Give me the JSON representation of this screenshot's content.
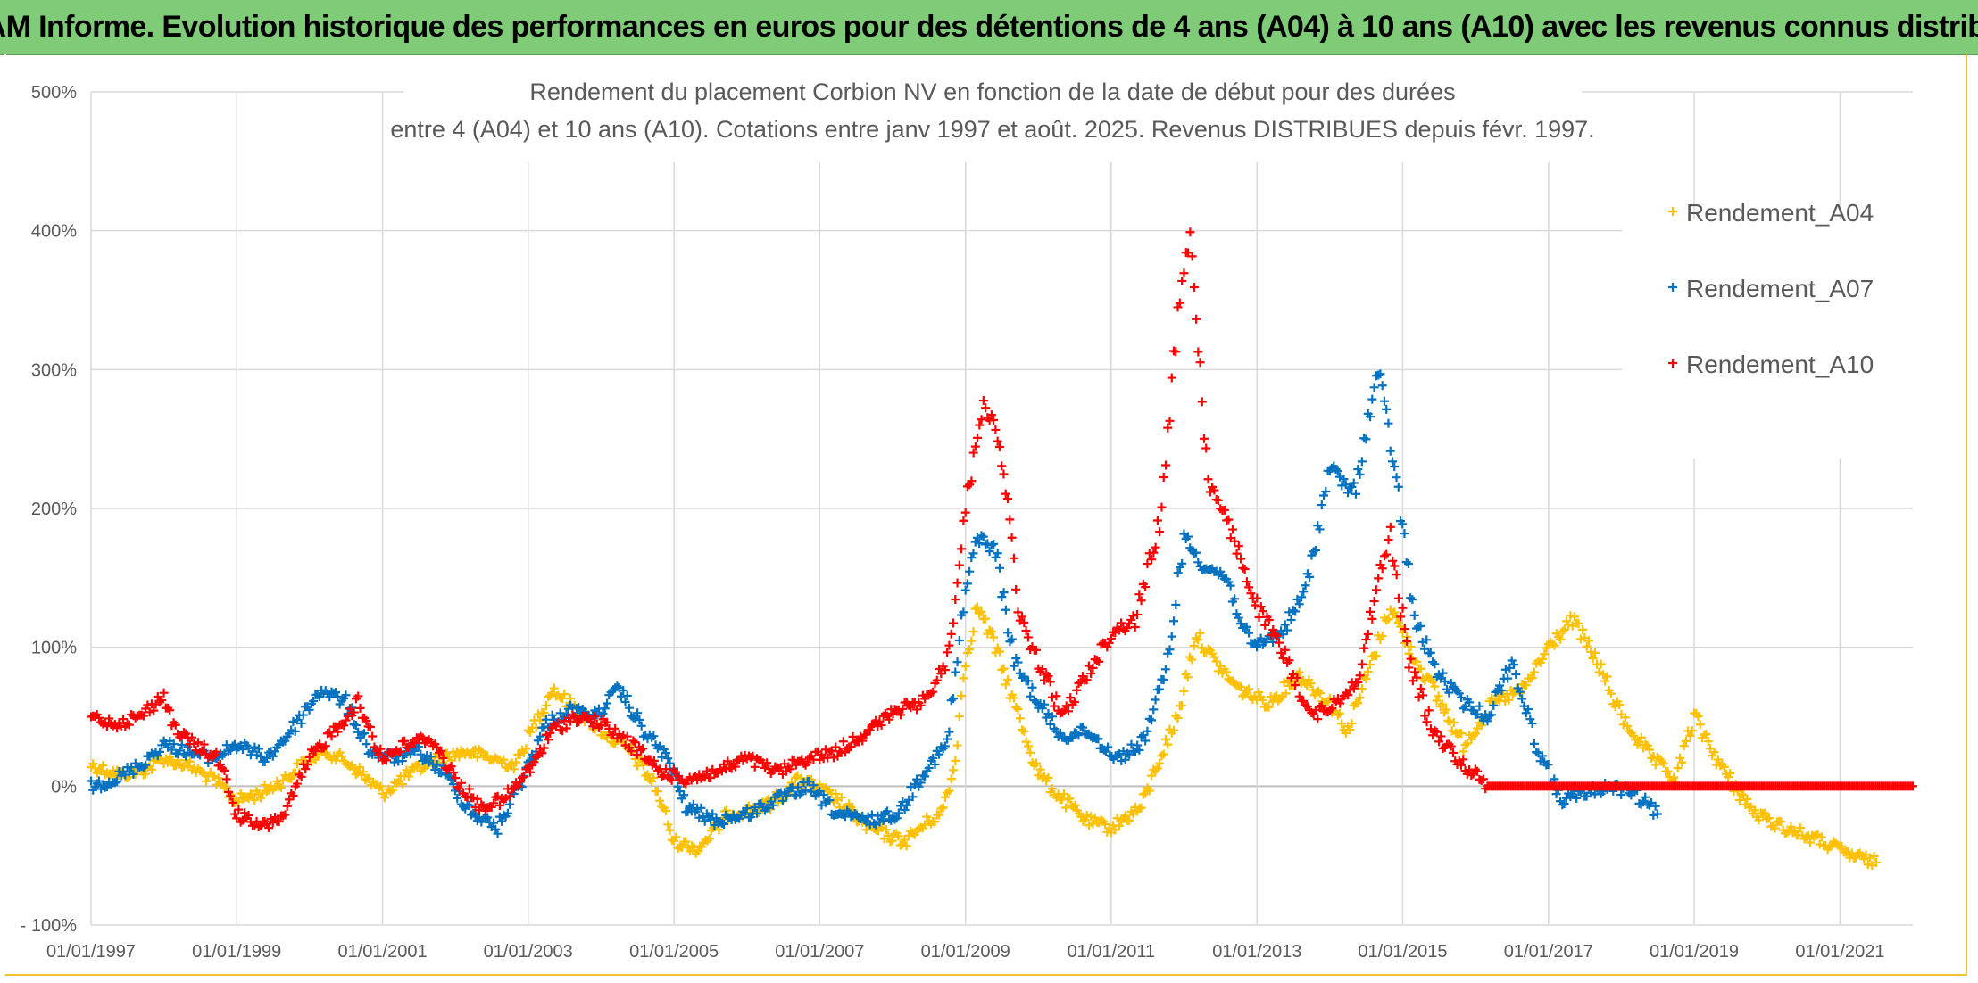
{
  "header": {
    "title": "ADAM Informe. Evolution historique des performances en euros pour des détentions de 4 ans (A04) à 10 ans (A10) avec les revenus connus distribués"
  },
  "chart_data": {
    "type": "scatter",
    "title_lines": [
      "Rendement du placement Corbion NV en fonction de la date de début pour des durées",
      "entre 4 (A04) et 10 ans (A10). Cotations entre janv 1997 et août. 2025. Revenus DISTRIBUES depuis févr. 1997."
    ],
    "xlabel": "",
    "ylabel": "",
    "x_range": [
      "1997-01-01",
      "2022-01-01"
    ],
    "ylim": [
      -100,
      500
    ],
    "y_ticks": [
      500,
      400,
      300,
      200,
      100,
      0,
      -100
    ],
    "y_tick_labels": [
      "500%",
      "400%",
      "300%",
      "200%",
      "100%",
      "0%",
      "- 100%"
    ],
    "x_tick_labels": [
      "01/01/1997",
      "01/01/1999",
      "01/01/2001",
      "01/01/2003",
      "01/01/2005",
      "01/01/2007",
      "01/01/2009",
      "01/01/2011",
      "01/01/2013",
      "01/01/2015",
      "01/01/2017",
      "01/01/2019",
      "01/01/2021"
    ],
    "grid": true,
    "legend_position": "top-right",
    "marker": "+",
    "series": [
      {
        "name": "Rendement_A04",
        "color": "#ffc000",
        "points": [
          [
            "1997-01-01",
            15
          ],
          [
            "1997-06-01",
            8
          ],
          [
            "1997-10-01",
            12
          ],
          [
            "1998-01-01",
            20
          ],
          [
            "1998-05-01",
            15
          ],
          [
            "1998-09-01",
            5
          ],
          [
            "1999-01-01",
            -10
          ],
          [
            "1999-05-01",
            -5
          ],
          [
            "1999-09-01",
            5
          ],
          [
            "2000-01-01",
            20
          ],
          [
            "2000-04-01",
            25
          ],
          [
            "2000-08-01",
            15
          ],
          [
            "2001-01-01",
            -5
          ],
          [
            "2001-06-01",
            10
          ],
          [
            "2001-10-01",
            20
          ],
          [
            "2002-03-01",
            25
          ],
          [
            "2002-07-01",
            20
          ],
          [
            "2002-11-01",
            15
          ],
          [
            "2003-01-01",
            35
          ],
          [
            "2003-05-01",
            70
          ],
          [
            "2003-09-01",
            55
          ],
          [
            "2004-01-01",
            40
          ],
          [
            "2004-06-01",
            25
          ],
          [
            "2004-10-01",
            0
          ],
          [
            "2005-01-01",
            -40
          ],
          [
            "2005-05-01",
            -45
          ],
          [
            "2005-10-01",
            -20
          ],
          [
            "2006-04-01",
            -15
          ],
          [
            "2006-10-01",
            5
          ],
          [
            "2007-04-01",
            -10
          ],
          [
            "2007-09-01",
            -30
          ],
          [
            "2008-03-01",
            -40
          ],
          [
            "2008-07-01",
            -25
          ],
          [
            "2008-09-01",
            -20
          ],
          [
            "2008-11-01",
            10
          ],
          [
            "2009-01-01",
            90
          ],
          [
            "2009-03-01",
            130
          ],
          [
            "2009-06-01",
            100
          ],
          [
            "2009-09-01",
            60
          ],
          [
            "2010-01-01",
            10
          ],
          [
            "2010-04-01",
            -5
          ],
          [
            "2010-09-01",
            -25
          ],
          [
            "2011-01-01",
            -30
          ],
          [
            "2011-06-01",
            -15
          ],
          [
            "2011-09-01",
            20
          ],
          [
            "2011-12-01",
            50
          ],
          [
            "2012-03-01",
            110
          ],
          [
            "2012-06-01",
            90
          ],
          [
            "2012-10-01",
            70
          ],
          [
            "2013-03-01",
            60
          ],
          [
            "2013-08-01",
            80
          ],
          [
            "2014-01-01",
            60
          ],
          [
            "2014-04-01",
            40
          ],
          [
            "2014-08-01",
            90
          ],
          [
            "2014-11-01",
            130
          ],
          [
            "2015-02-01",
            100
          ],
          [
            "2015-06-01",
            70
          ],
          [
            "2015-11-01",
            30
          ],
          [
            "2016-04-01",
            60
          ],
          [
            "2016-09-01",
            70
          ],
          [
            "2017-01-01",
            100
          ],
          [
            "2017-05-01",
            120
          ],
          [
            "2017-09-01",
            90
          ],
          [
            "2018-01-01",
            50
          ],
          [
            "2018-06-01",
            20
          ],
          [
            "2018-10-01",
            5
          ],
          [
            "2019-01-01",
            50
          ],
          [
            "2019-06-01",
            10
          ],
          [
            "2019-11-01",
            -20
          ],
          [
            "2020-04-01",
            -30
          ],
          [
            "2020-10-01",
            -40
          ],
          [
            "2021-03-01",
            -50
          ],
          [
            "2021-07-01",
            -55
          ]
        ]
      },
      {
        "name": "Rendement_A07",
        "color": "#0070c0",
        "points": [
          [
            "1997-01-01",
            0
          ],
          [
            "1997-05-01",
            5
          ],
          [
            "1997-09-01",
            15
          ],
          [
            "1998-01-01",
            30
          ],
          [
            "1998-05-01",
            25
          ],
          [
            "1998-09-01",
            20
          ],
          [
            "1999-01-01",
            30
          ],
          [
            "1999-06-01",
            20
          ],
          [
            "1999-10-01",
            40
          ],
          [
            "2000-03-01",
            70
          ],
          [
            "2000-07-01",
            60
          ],
          [
            "2000-11-01",
            25
          ],
          [
            "2001-03-01",
            20
          ],
          [
            "2001-07-01",
            25
          ],
          [
            "2001-11-01",
            10
          ],
          [
            "2002-04-01",
            -20
          ],
          [
            "2002-08-01",
            -30
          ],
          [
            "2002-12-01",
            5
          ],
          [
            "2003-04-01",
            45
          ],
          [
            "2003-08-01",
            55
          ],
          [
            "2003-12-01",
            50
          ],
          [
            "2004-04-01",
            70
          ],
          [
            "2004-08-01",
            40
          ],
          [
            "2004-12-01",
            20
          ],
          [
            "2005-03-01",
            -15
          ],
          [
            "2005-08-01",
            -25
          ],
          [
            "2006-01-01",
            -20
          ],
          [
            "2006-06-01",
            -10
          ],
          [
            "2006-11-01",
            0
          ],
          [
            "2007-04-01",
            -20
          ],
          [
            "2007-09-01",
            -25
          ],
          [
            "2008-02-01",
            -20
          ],
          [
            "2008-06-01",
            10
          ],
          [
            "2008-10-01",
            30
          ],
          [
            "2009-01-01",
            140
          ],
          [
            "2009-03-01",
            180
          ],
          [
            "2009-06-01",
            170
          ],
          [
            "2009-09-01",
            90
          ],
          [
            "2010-01-01",
            60
          ],
          [
            "2010-05-01",
            35
          ],
          [
            "2010-09-01",
            40
          ],
          [
            "2011-02-01",
            20
          ],
          [
            "2011-06-01",
            30
          ],
          [
            "2011-10-01",
            80
          ],
          [
            "2012-01-01",
            180
          ],
          [
            "2012-04-01",
            160
          ],
          [
            "2012-08-01",
            150
          ],
          [
            "2012-12-01",
            100
          ],
          [
            "2013-05-01",
            110
          ],
          [
            "2013-09-01",
            140
          ],
          [
            "2014-01-01",
            230
          ],
          [
            "2014-05-01",
            210
          ],
          [
            "2014-09-01",
            300
          ],
          [
            "2014-12-01",
            220
          ],
          [
            "2015-03-01",
            120
          ],
          [
            "2015-07-01",
            80
          ],
          [
            "2015-11-01",
            60
          ],
          [
            "2016-03-01",
            50
          ],
          [
            "2016-07-01",
            90
          ],
          [
            "2016-11-01",
            30
          ],
          [
            "2017-03-01",
            -10
          ],
          [
            "2017-07-01",
            -5
          ],
          [
            "2017-11-01",
            0
          ],
          [
            "2018-03-01",
            -5
          ],
          [
            "2018-07-01",
            -20
          ]
        ]
      },
      {
        "name": "Rendement_A10",
        "color": "#ff0000",
        "points": [
          [
            "1997-01-01",
            50
          ],
          [
            "1997-05-01",
            45
          ],
          [
            "1997-09-01",
            50
          ],
          [
            "1998-01-01",
            65
          ],
          [
            "1998-03-01",
            40
          ],
          [
            "1998-06-01",
            30
          ],
          [
            "1998-10-01",
            20
          ],
          [
            "1999-01-01",
            -20
          ],
          [
            "1999-05-01",
            -30
          ],
          [
            "1999-09-01",
            -20
          ],
          [
            "2000-01-01",
            20
          ],
          [
            "2000-05-01",
            40
          ],
          [
            "2000-09-01",
            60
          ],
          [
            "2001-01-01",
            20
          ],
          [
            "2001-05-01",
            30
          ],
          [
            "2001-09-01",
            35
          ],
          [
            "2002-01-01",
            5
          ],
          [
            "2002-05-01",
            -15
          ],
          [
            "2002-09-01",
            -10
          ],
          [
            "2003-01-01",
            10
          ],
          [
            "2003-05-01",
            40
          ],
          [
            "2003-09-01",
            50
          ],
          [
            "2004-01-01",
            45
          ],
          [
            "2004-06-01",
            30
          ],
          [
            "2004-11-01",
            10
          ],
          [
            "2005-03-01",
            5
          ],
          [
            "2005-08-01",
            10
          ],
          [
            "2006-01-01",
            20
          ],
          [
            "2006-06-01",
            10
          ],
          [
            "2006-11-01",
            20
          ],
          [
            "2007-04-01",
            25
          ],
          [
            "2007-09-01",
            40
          ],
          [
            "2008-02-01",
            55
          ],
          [
            "2008-06-01",
            60
          ],
          [
            "2008-10-01",
            90
          ],
          [
            "2009-01-01",
            200
          ],
          [
            "2009-04-01",
            280
          ],
          [
            "2009-07-01",
            240
          ],
          [
            "2009-10-01",
            120
          ],
          [
            "2010-01-01",
            90
          ],
          [
            "2010-05-01",
            50
          ],
          [
            "2010-09-01",
            80
          ],
          [
            "2011-01-01",
            110
          ],
          [
            "2011-05-01",
            120
          ],
          [
            "2011-09-01",
            190
          ],
          [
            "2011-12-01",
            340
          ],
          [
            "2012-02-01",
            400
          ],
          [
            "2012-05-01",
            220
          ],
          [
            "2012-09-01",
            180
          ],
          [
            "2013-01-01",
            130
          ],
          [
            "2013-06-01",
            90
          ],
          [
            "2013-10-01",
            50
          ],
          [
            "2014-02-01",
            60
          ],
          [
            "2014-06-01",
            80
          ],
          [
            "2014-09-01",
            150
          ],
          [
            "2014-11-01",
            180
          ],
          [
            "2015-02-01",
            90
          ],
          [
            "2015-06-01",
            40
          ],
          [
            "2015-10-01",
            20
          ],
          [
            "2016-03-01",
            0
          ],
          [
            "2022-01-01",
            0
          ]
        ]
      }
    ]
  }
}
